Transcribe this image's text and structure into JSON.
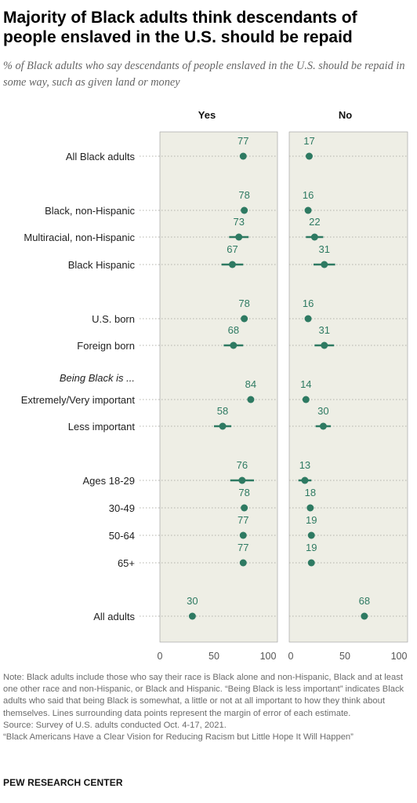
{
  "title": "Majority of Black adults think descendants of people enslaved in the U.S. should be repaid",
  "subtitle": "% of Black adults who say descendants of people enslaved in the U.S. should be repaid in some way, such as given land or money",
  "colors": {
    "panel_bg": "#eeeee5",
    "panel_border": "#999999",
    "dot": "#2e7a62",
    "label_text": "#2e7a62",
    "guide": "#b3b3ab"
  },
  "chart_data": {
    "type": "scatter",
    "panels": [
      "Yes",
      "No"
    ],
    "xlim": [
      0,
      100
    ],
    "xticks": [
      0,
      50,
      100
    ],
    "grid": false,
    "rows": [
      {
        "label": "All Black adults",
        "italic": false,
        "yes": 77,
        "no": 17,
        "yes_err": 0,
        "no_err": 0
      },
      {
        "label": "Black, non-Hispanic",
        "italic": false,
        "yes": 78,
        "no": 16,
        "yes_err": 0,
        "no_err": 0
      },
      {
        "label": "Multiracial, non-Hispanic",
        "italic": false,
        "yes": 73,
        "no": 22,
        "yes_err": 9,
        "no_err": 8
      },
      {
        "label": "Black Hispanic",
        "italic": false,
        "yes": 67,
        "no": 31,
        "yes_err": 10,
        "no_err": 10
      },
      {
        "label": "U.S. born",
        "italic": false,
        "yes": 78,
        "no": 16,
        "yes_err": 0,
        "no_err": 0
      },
      {
        "label": "Foreign born",
        "italic": false,
        "yes": 68,
        "no": 31,
        "yes_err": 9,
        "no_err": 9
      },
      {
        "label": "Being Black is ...",
        "italic": true,
        "header": true
      },
      {
        "label": "Extremely/Very important",
        "italic": false,
        "yes": 84,
        "no": 14,
        "yes_err": 0,
        "no_err": 0
      },
      {
        "label": "Less important",
        "italic": false,
        "yes": 58,
        "no": 30,
        "yes_err": 8,
        "no_err": 7
      },
      {
        "label": "Ages 18-29",
        "italic": false,
        "yes": 76,
        "no": 13,
        "yes_err": 11,
        "no_err": 6
      },
      {
        "label": "30-49",
        "italic": false,
        "yes": 78,
        "no": 18,
        "yes_err": 0,
        "no_err": 0
      },
      {
        "label": "50-64",
        "italic": false,
        "yes": 77,
        "no": 19,
        "yes_err": 0,
        "no_err": 0
      },
      {
        "label": "65+",
        "italic": false,
        "yes": 77,
        "no": 19,
        "yes_err": 0,
        "no_err": 0
      },
      {
        "label": "All adults",
        "italic": false,
        "yes": 30,
        "no": 68,
        "yes_err": 0,
        "no_err": 0
      }
    ]
  },
  "notes": [
    "Note: Black adults include those who say their race is Black alone and non-Hispanic, Black and at least one other race and non-Hispanic, or Black and Hispanic. “Being Black is less important” indicates Black adults who said that being Black is somewhat, a little or not at all important to how they think about themselves. Lines surrounding data points represent the margin of error of each estimate.",
    "Source: Survey of U.S. adults conducted Oct. 4-17, 2021.",
    "“Black Americans Have a Clear Vision for Reducing Racism but Little Hope It Will Happen”"
  ],
  "footer": "PEW RESEARCH CENTER"
}
